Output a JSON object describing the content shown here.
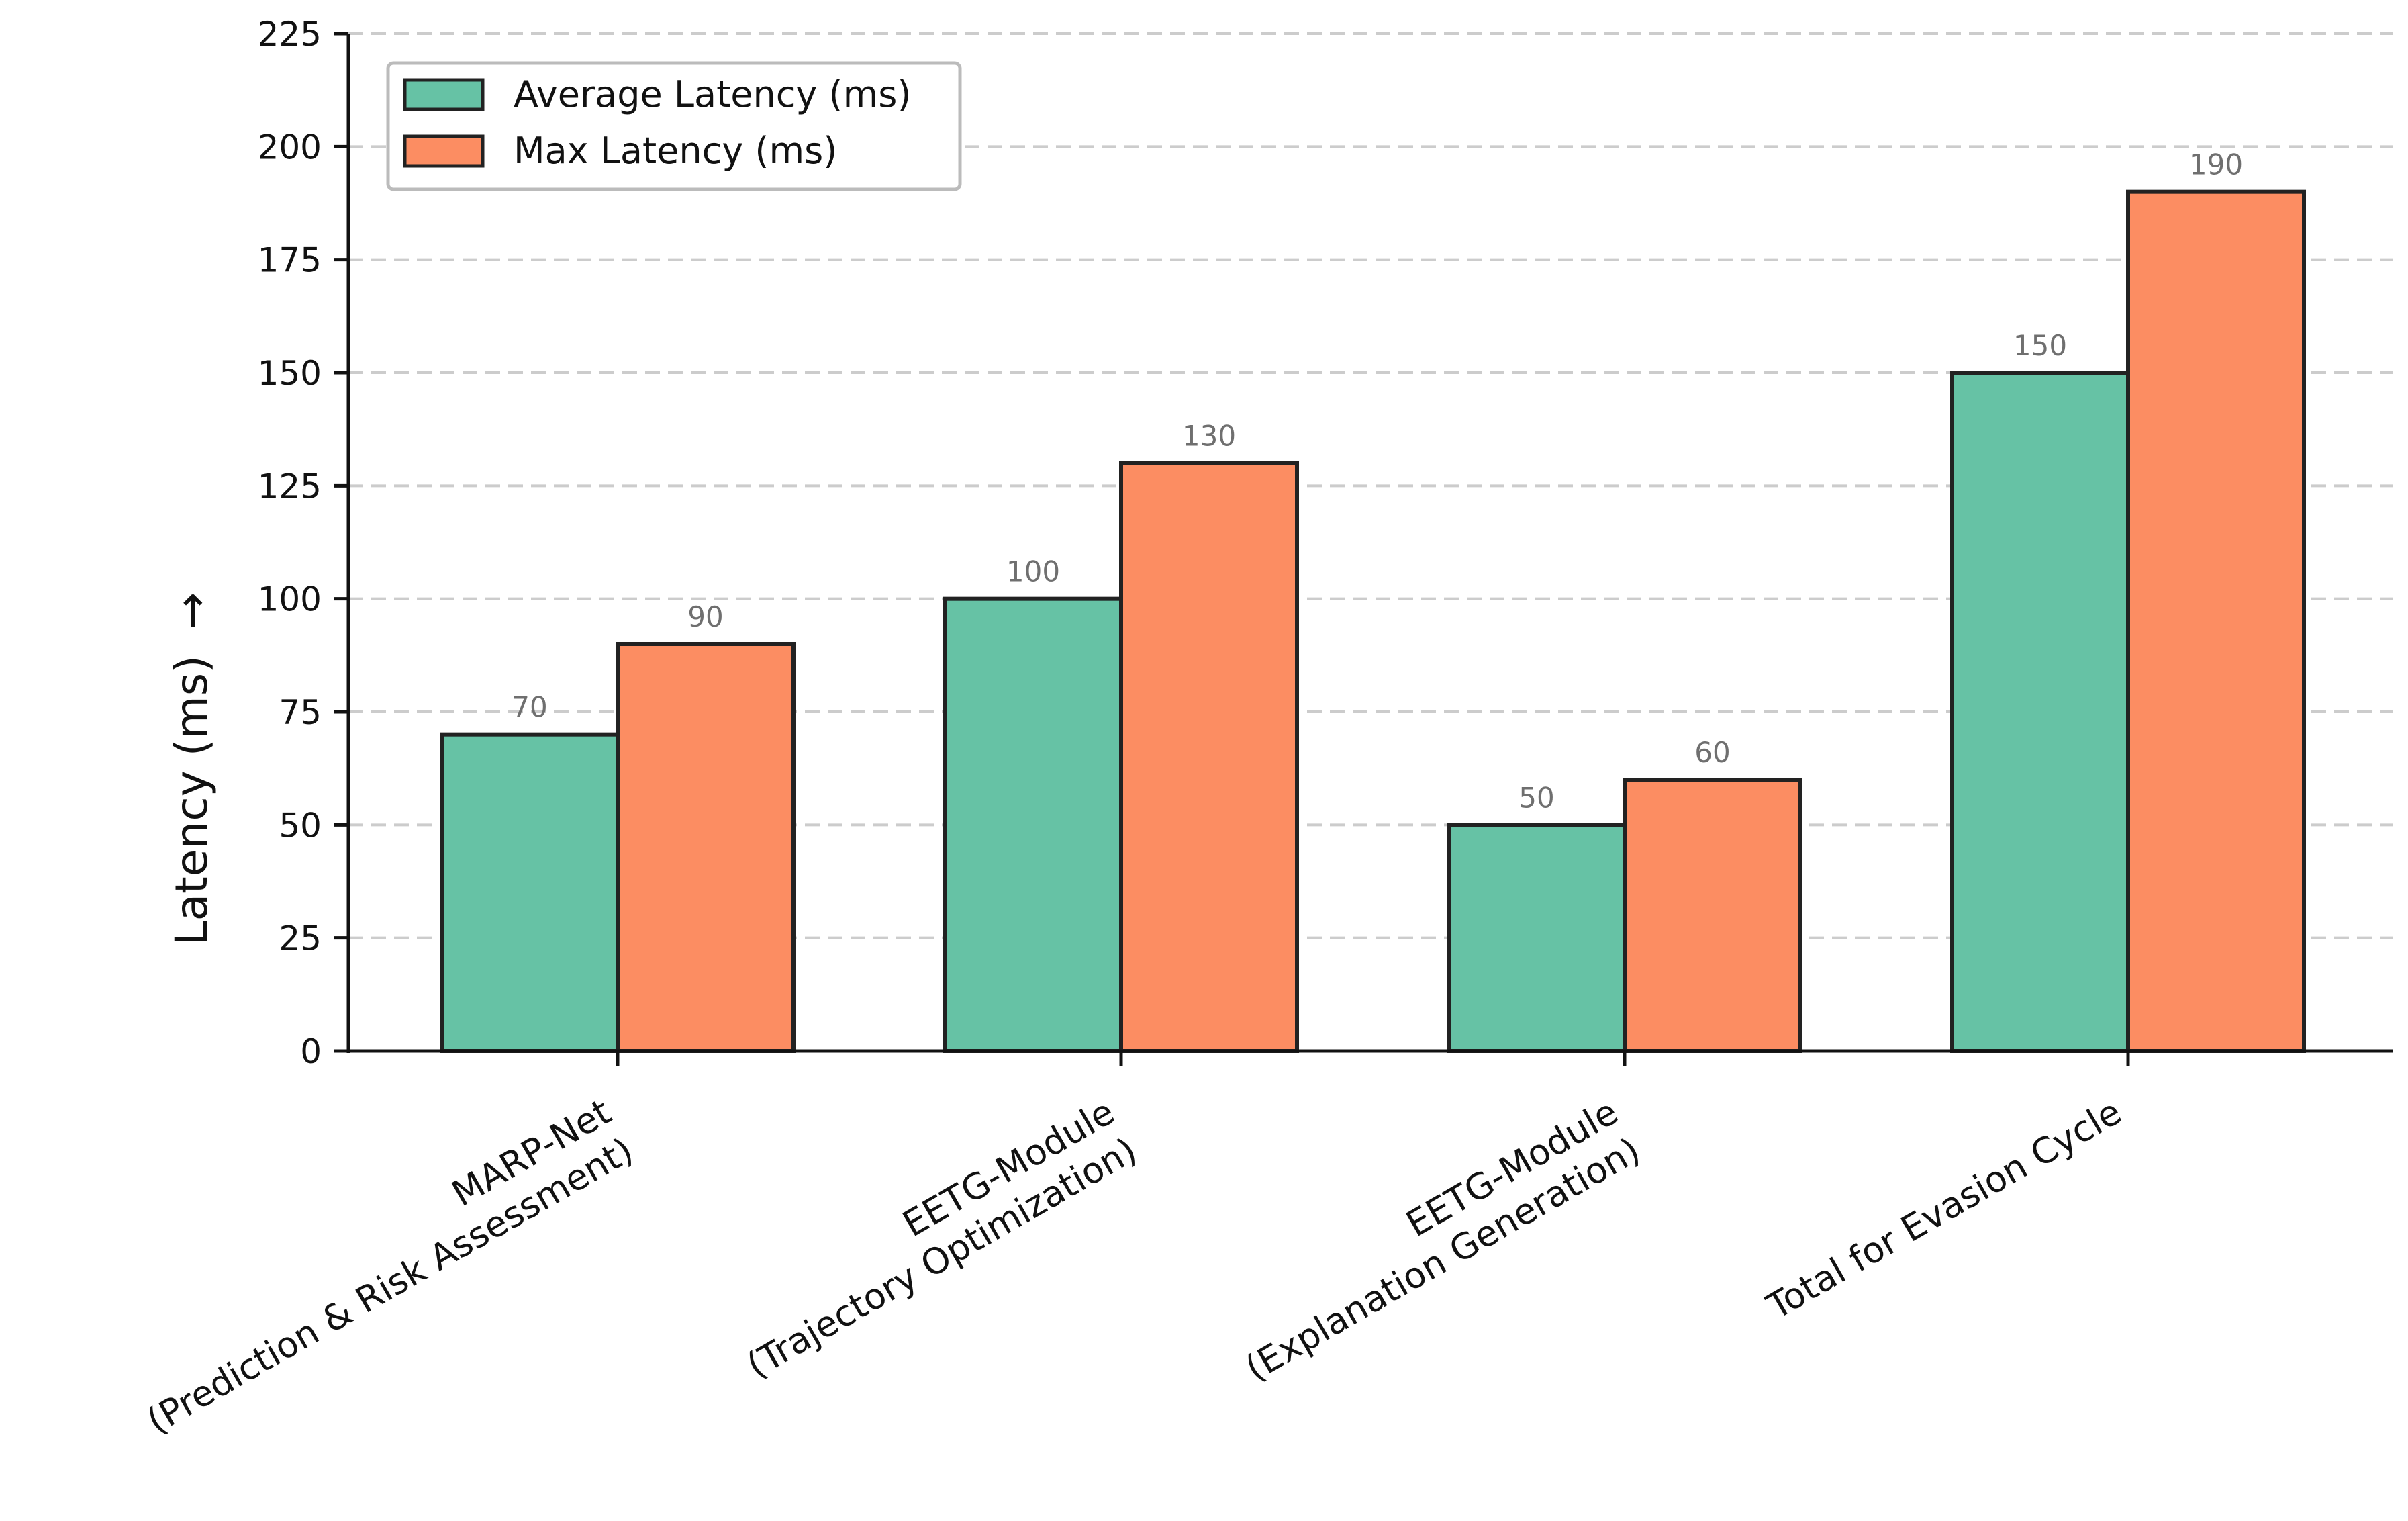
{
  "chart_data": {
    "type": "bar",
    "title": "",
    "xlabel": "",
    "ylabel": "Latency (ms)",
    "ylabel_arrow": "→",
    "ylim": [
      0,
      225
    ],
    "yticks": [
      0,
      25,
      50,
      75,
      100,
      125,
      150,
      175,
      200,
      225
    ],
    "ytick_labels": [
      "0",
      "25",
      "50",
      "75",
      "100",
      "125",
      "150",
      "175",
      "200",
      "225"
    ],
    "grid": "horizontal dashed",
    "legend_position": "top-left",
    "categories": [
      [
        "MARP-Net",
        "(Prediction & Risk Assessment)"
      ],
      [
        "EETG-Module",
        "(Trajectory Optimization)"
      ],
      [
        "EETG-Module",
        "(Explanation Generation)"
      ],
      [
        "Total for Evasion Cycle"
      ]
    ],
    "series": [
      {
        "name": "Average Latency (ms)",
        "color": "#66c2a5",
        "values": [
          70,
          100,
          50,
          150
        ],
        "value_labels": [
          "70",
          "100",
          "50",
          "150"
        ]
      },
      {
        "name": "Max Latency (ms)",
        "color": "#fc8d62",
        "values": [
          90,
          130,
          60,
          190
        ],
        "value_labels": [
          "90",
          "130",
          "60",
          "190"
        ]
      }
    ],
    "colors": {
      "edge": "#222222",
      "grid": "#cccccc",
      "axis": "#111111",
      "value_text": "#6f6f6f"
    }
  }
}
